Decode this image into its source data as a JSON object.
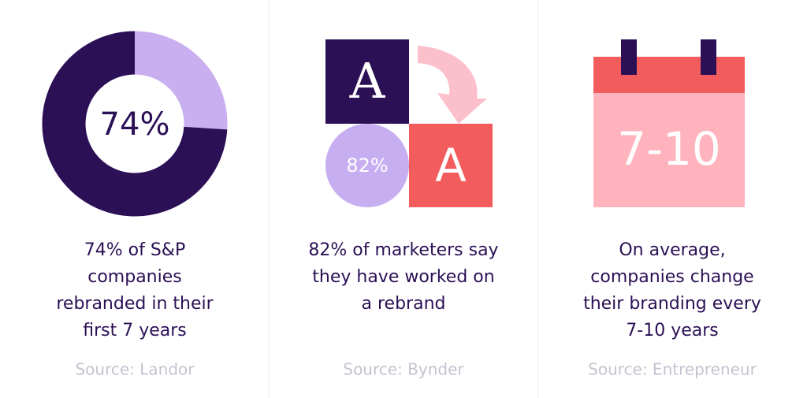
{
  "panels": [
    {
      "stat": {
        "value": 74,
        "label": "74%"
      },
      "lines": [
        "74% of S&P",
        "companies",
        "rebranded in their",
        "first 7 years"
      ],
      "source": "Source: Landor"
    },
    {
      "letters": [
        "A",
        "A"
      ],
      "stat": "82%",
      "lines": [
        "82% of marketers say",
        "they have worked on",
        "a rebrand"
      ],
      "source": "Source: Bynder"
    },
    {
      "stat": "7-10",
      "lines": [
        "On average,",
        "companies change",
        "their branding every",
        "7-10 years"
      ],
      "source": "Source: Entrepreneur"
    }
  ]
}
